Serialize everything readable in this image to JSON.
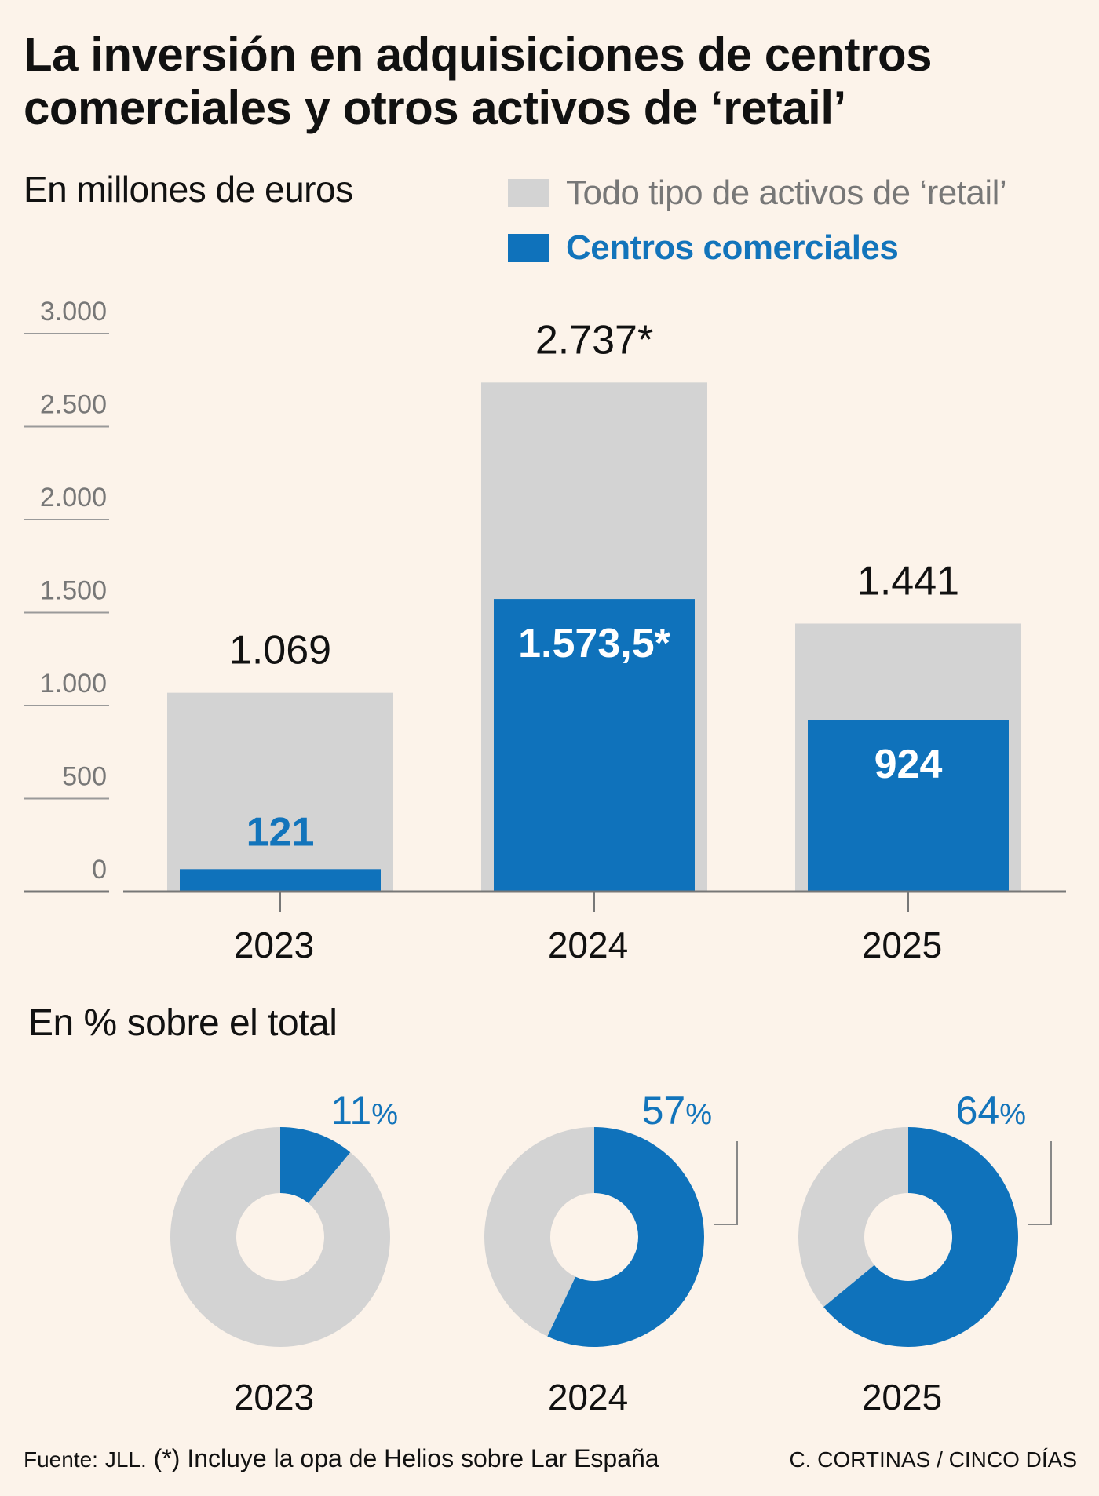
{
  "title": "La inversión en adquisiciones de centros comerciales y otros activos de ‘retail’",
  "subtitle": "En millones de euros",
  "legend": {
    "total": "Todo tipo de activos de ‘retail’",
    "malls": "Centros comerciales"
  },
  "colors": {
    "background": "#fcf3ea",
    "total": "#d3d3d3",
    "malls": "#0f72bb",
    "axis": "#777777",
    "text": "#111111"
  },
  "chart_data": [
    {
      "type": "bar",
      "title": "En millones de euros",
      "categories": [
        "2023",
        "2024",
        "2025"
      ],
      "series": [
        {
          "name": "Todo tipo de activos de ‘retail’",
          "values": [
            1069,
            2737,
            1441
          ],
          "labels": [
            "1.069",
            "2.737*",
            "1.441"
          ]
        },
        {
          "name": "Centros comerciales",
          "values": [
            121,
            1573.5,
            924
          ],
          "labels": [
            "121",
            "1.573,5*",
            "924"
          ]
        }
      ],
      "ylim": [
        0,
        3000
      ],
      "yticks": [
        0,
        500,
        1000,
        1500,
        2000,
        2500,
        3000
      ],
      "ytick_labels": [
        "0",
        "500",
        "1.000",
        "1.500",
        "2.000",
        "2.500",
        "3.000"
      ],
      "xlabel": "",
      "ylabel": "",
      "grid": false,
      "legend_position": "top-right"
    },
    {
      "type": "pie",
      "title": "En % sobre el total",
      "style": "donut",
      "categories": [
        "2023",
        "2024",
        "2025"
      ],
      "values": [
        11,
        57,
        64
      ],
      "value_labels": [
        "11",
        "57",
        "64"
      ],
      "unit": "%"
    }
  ],
  "donut_title": "En % sobre el total",
  "footer": {
    "source_prefix": "Fuente:",
    "source_name": "JLL.",
    "note_mark": "(*)",
    "note": "Incluye la opa de Helios sobre Lar España",
    "credit": "C. CORTINAS / CINCO DÍAS"
  }
}
